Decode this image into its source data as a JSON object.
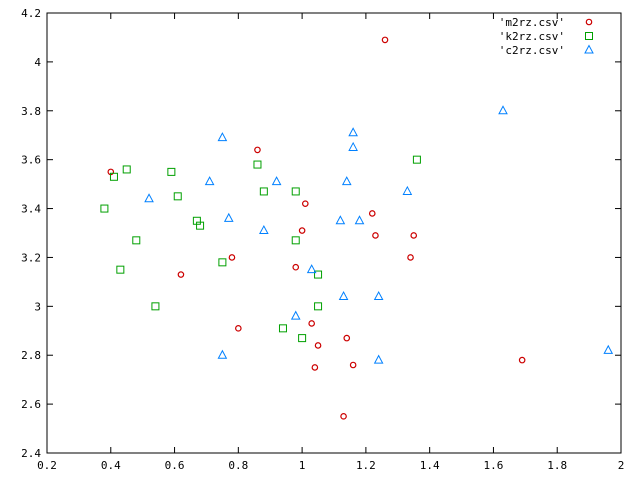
{
  "chart_data": {
    "type": "scatter",
    "xlim": [
      0.2,
      2.0
    ],
    "ylim": [
      2.4,
      4.2
    ],
    "x_ticks": [
      0.2,
      0.4,
      0.6,
      0.8,
      1.0,
      1.2,
      1.4,
      1.6,
      1.8,
      2.0
    ],
    "y_ticks": [
      2.4,
      2.6,
      2.8,
      3.0,
      3.2,
      3.4,
      3.6,
      3.8,
      4.0,
      4.2
    ],
    "x_tick_labels": [
      "0.2",
      "0.4",
      "0.6",
      "0.8",
      "1",
      "1.2",
      "1.4",
      "1.6",
      "1.8",
      "2"
    ],
    "y_tick_labels": [
      "2.4",
      "2.6",
      "2.8",
      "3",
      "3.2",
      "3.4",
      "3.6",
      "3.8",
      "4",
      "4.2"
    ],
    "grid": false,
    "legend_position": "top-right",
    "series": [
      {
        "name": "'m2rz.csv'",
        "marker": "circle",
        "color": "#cc0000",
        "points": [
          [
            0.4,
            3.55
          ],
          [
            0.62,
            3.13
          ],
          [
            0.78,
            3.2
          ],
          [
            0.8,
            2.91
          ],
          [
            0.86,
            3.64
          ],
          [
            0.98,
            3.16
          ],
          [
            1.0,
            3.31
          ],
          [
            1.01,
            3.42
          ],
          [
            1.03,
            2.93
          ],
          [
            1.04,
            2.75
          ],
          [
            1.05,
            2.84
          ],
          [
            1.13,
            2.55
          ],
          [
            1.14,
            2.87
          ],
          [
            1.16,
            2.76
          ],
          [
            1.22,
            3.38
          ],
          [
            1.23,
            3.29
          ],
          [
            1.26,
            4.09
          ],
          [
            1.34,
            3.2
          ],
          [
            1.35,
            3.29
          ],
          [
            1.69,
            2.78
          ]
        ]
      },
      {
        "name": "'k2rz.csv'",
        "marker": "square",
        "color": "#00a000",
        "points": [
          [
            0.38,
            3.4
          ],
          [
            0.41,
            3.53
          ],
          [
            0.43,
            3.15
          ],
          [
            0.45,
            3.56
          ],
          [
            0.48,
            3.27
          ],
          [
            0.54,
            3.0
          ],
          [
            0.59,
            3.55
          ],
          [
            0.61,
            3.45
          ],
          [
            0.67,
            3.35
          ],
          [
            0.68,
            3.33
          ],
          [
            0.75,
            3.18
          ],
          [
            0.86,
            3.58
          ],
          [
            0.88,
            3.47
          ],
          [
            0.94,
            2.91
          ],
          [
            0.98,
            3.47
          ],
          [
            0.98,
            3.27
          ],
          [
            1.0,
            2.87
          ],
          [
            1.05,
            3.13
          ],
          [
            1.05,
            3.0
          ],
          [
            1.36,
            3.6
          ]
        ]
      },
      {
        "name": "'c2rz.csv'",
        "marker": "triangle",
        "color": "#0080ff",
        "points": [
          [
            0.52,
            3.44
          ],
          [
            0.71,
            3.51
          ],
          [
            0.75,
            3.69
          ],
          [
            0.75,
            2.8
          ],
          [
            0.77,
            3.36
          ],
          [
            0.88,
            3.31
          ],
          [
            0.92,
            3.51
          ],
          [
            0.98,
            2.96
          ],
          [
            1.03,
            3.15
          ],
          [
            1.12,
            3.35
          ],
          [
            1.13,
            3.04
          ],
          [
            1.14,
            3.51
          ],
          [
            1.16,
            3.71
          ],
          [
            1.16,
            3.65
          ],
          [
            1.18,
            3.35
          ],
          [
            1.24,
            3.04
          ],
          [
            1.24,
            2.78
          ],
          [
            1.33,
            3.47
          ],
          [
            1.63,
            3.8
          ],
          [
            1.96,
            2.82
          ]
        ]
      }
    ]
  }
}
